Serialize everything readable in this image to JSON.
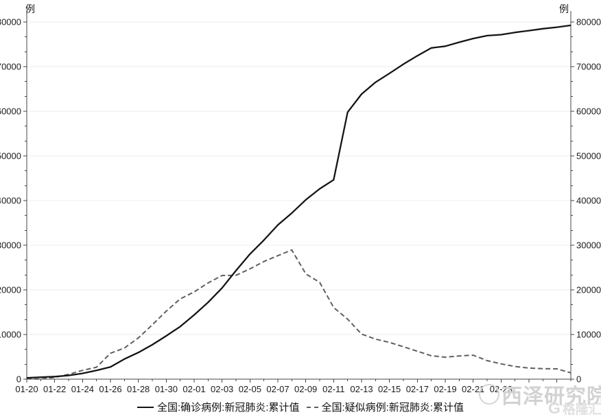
{
  "unit_label": "例",
  "chart_data": {
    "type": "line",
    "title": "",
    "xlabel": "",
    "ylabel": "例",
    "ylim": [
      0,
      80000
    ],
    "y_tick_step": 10000,
    "y_minor_divisions": 3,
    "grid": true,
    "legend_position": "bottom",
    "x_label_every": 2,
    "x_label_last_index": 34,
    "x": [
      "01-20",
      "01-21",
      "01-22",
      "01-23",
      "01-24",
      "01-25",
      "01-26",
      "01-27",
      "01-28",
      "01-29",
      "01-30",
      "01-31",
      "02-01",
      "02-02",
      "02-03",
      "02-04",
      "02-05",
      "02-06",
      "02-07",
      "02-08",
      "02-09",
      "02-10",
      "02-11",
      "02-12",
      "02-13",
      "02-14",
      "02-15",
      "02-16",
      "02-17",
      "02-18",
      "02-19",
      "02-20",
      "02-21",
      "02-22",
      "02-23",
      "02-24",
      "02-25",
      "02-26",
      "02-27",
      "02-28"
    ],
    "series": [
      {
        "name": "全国:确诊病例:新冠肺炎:累计值",
        "style": "solid",
        "color": "#141414",
        "values": [
          291,
          440,
          571,
          830,
          1287,
          1975,
          2744,
          4515,
          5974,
          7711,
          9692,
          11791,
          14380,
          17205,
          20438,
          24324,
          28018,
          31161,
          34546,
          37198,
          40171,
          42638,
          44653,
          59804,
          63851,
          66492,
          68500,
          70548,
          72436,
          74185,
          74576,
          75465,
          76288,
          76936,
          77150,
          77658,
          78064,
          78497,
          78824,
          79251
        ]
      },
      {
        "name": "全国:疑似病例:新冠肺炎:累计值",
        "style": "dashed",
        "color": "#5f5f5f",
        "values": [
          54,
          37,
          393,
          1072,
          1965,
          2684,
          5794,
          6973,
          9239,
          12167,
          15238,
          17988,
          19544,
          21558,
          23214,
          23260,
          24702,
          26359,
          27657,
          28942,
          23589,
          21675,
          16067,
          13435,
          10109,
          8969,
          8228,
          7264,
          6242,
          5248,
          4922,
          5206,
          5365,
          4148,
          3434,
          2824,
          2491,
          2358,
          2308,
          1418
        ]
      }
    ],
    "colors": {
      "axis": "#444444",
      "grid": "#ececec",
      "tick_label": "#1a1a1a"
    }
  },
  "watermarks": {
    "xize": "西泽研究院",
    "gelonghui": "格隆汇",
    "gelonghui_logo": "G"
  }
}
